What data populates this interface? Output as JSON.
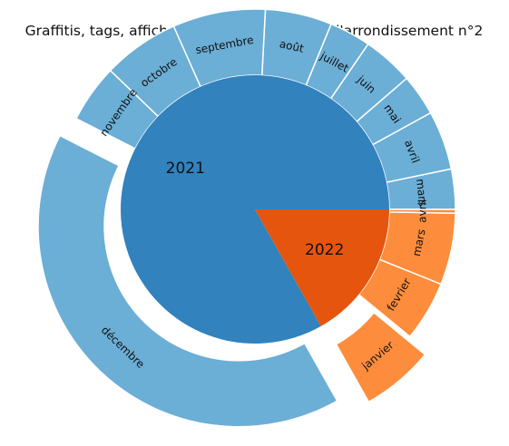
{
  "chart_data": {
    "type": "pie",
    "subtype": "sunburst",
    "title": "Graffitis, tags, affiches et autocollants dans l'arrondissement n°2",
    "inner": [
      {
        "label": "2021",
        "value": 8208,
        "color": "#3182bd"
      },
      {
        "label": "2022",
        "value": 1660,
        "color": "#e6550d"
      }
    ],
    "outer": [
      {
        "label": "mars",
        "parent": "2021",
        "value": 320,
        "color": "#6baed6",
        "explode": false
      },
      {
        "label": "avril",
        "parent": "2021",
        "value": 470,
        "color": "#6baed6",
        "explode": false
      },
      {
        "label": "mai",
        "parent": "2021",
        "value": 330,
        "color": "#6baed6",
        "explode": false
      },
      {
        "label": "juin",
        "parent": "2021",
        "value": 405,
        "color": "#6baed6",
        "explode": false
      },
      {
        "label": "juillet",
        "parent": "2021",
        "value": 330,
        "color": "#6baed6",
        "explode": false
      },
      {
        "label": "août",
        "parent": "2021",
        "value": 530,
        "color": "#6baed6",
        "explode": false
      },
      {
        "label": "septembre",
        "parent": "2021",
        "value": 738,
        "color": "#6baed6",
        "explode": false
      },
      {
        "label": "octobre",
        "parent": "2021",
        "value": 609,
        "color": "#6baed6",
        "explode": false
      },
      {
        "label": "novembre",
        "parent": "2021",
        "value": 463,
        "color": "#6baed6",
        "explode": false
      },
      {
        "label": "décembre",
        "parent": "2021",
        "value": 4013,
        "color": "#6baed6",
        "explode": true
      },
      {
        "label": "janvier",
        "parent": "2022",
        "value": 580,
        "color": "#fd8d3c",
        "explode": true
      },
      {
        "label": "fevrier",
        "parent": "2022",
        "value": 480,
        "color": "#fd8d3c",
        "explode": false
      },
      {
        "label": "mars",
        "parent": "2022",
        "value": 570,
        "color": "#fd8d3c",
        "explode": false
      },
      {
        "label": "avril",
        "parent": "2022",
        "value": 30,
        "color": "#fd8d3c",
        "explode": false
      }
    ],
    "start_angle_deg": 0,
    "direction": "counterclockwise",
    "legend": "none"
  }
}
